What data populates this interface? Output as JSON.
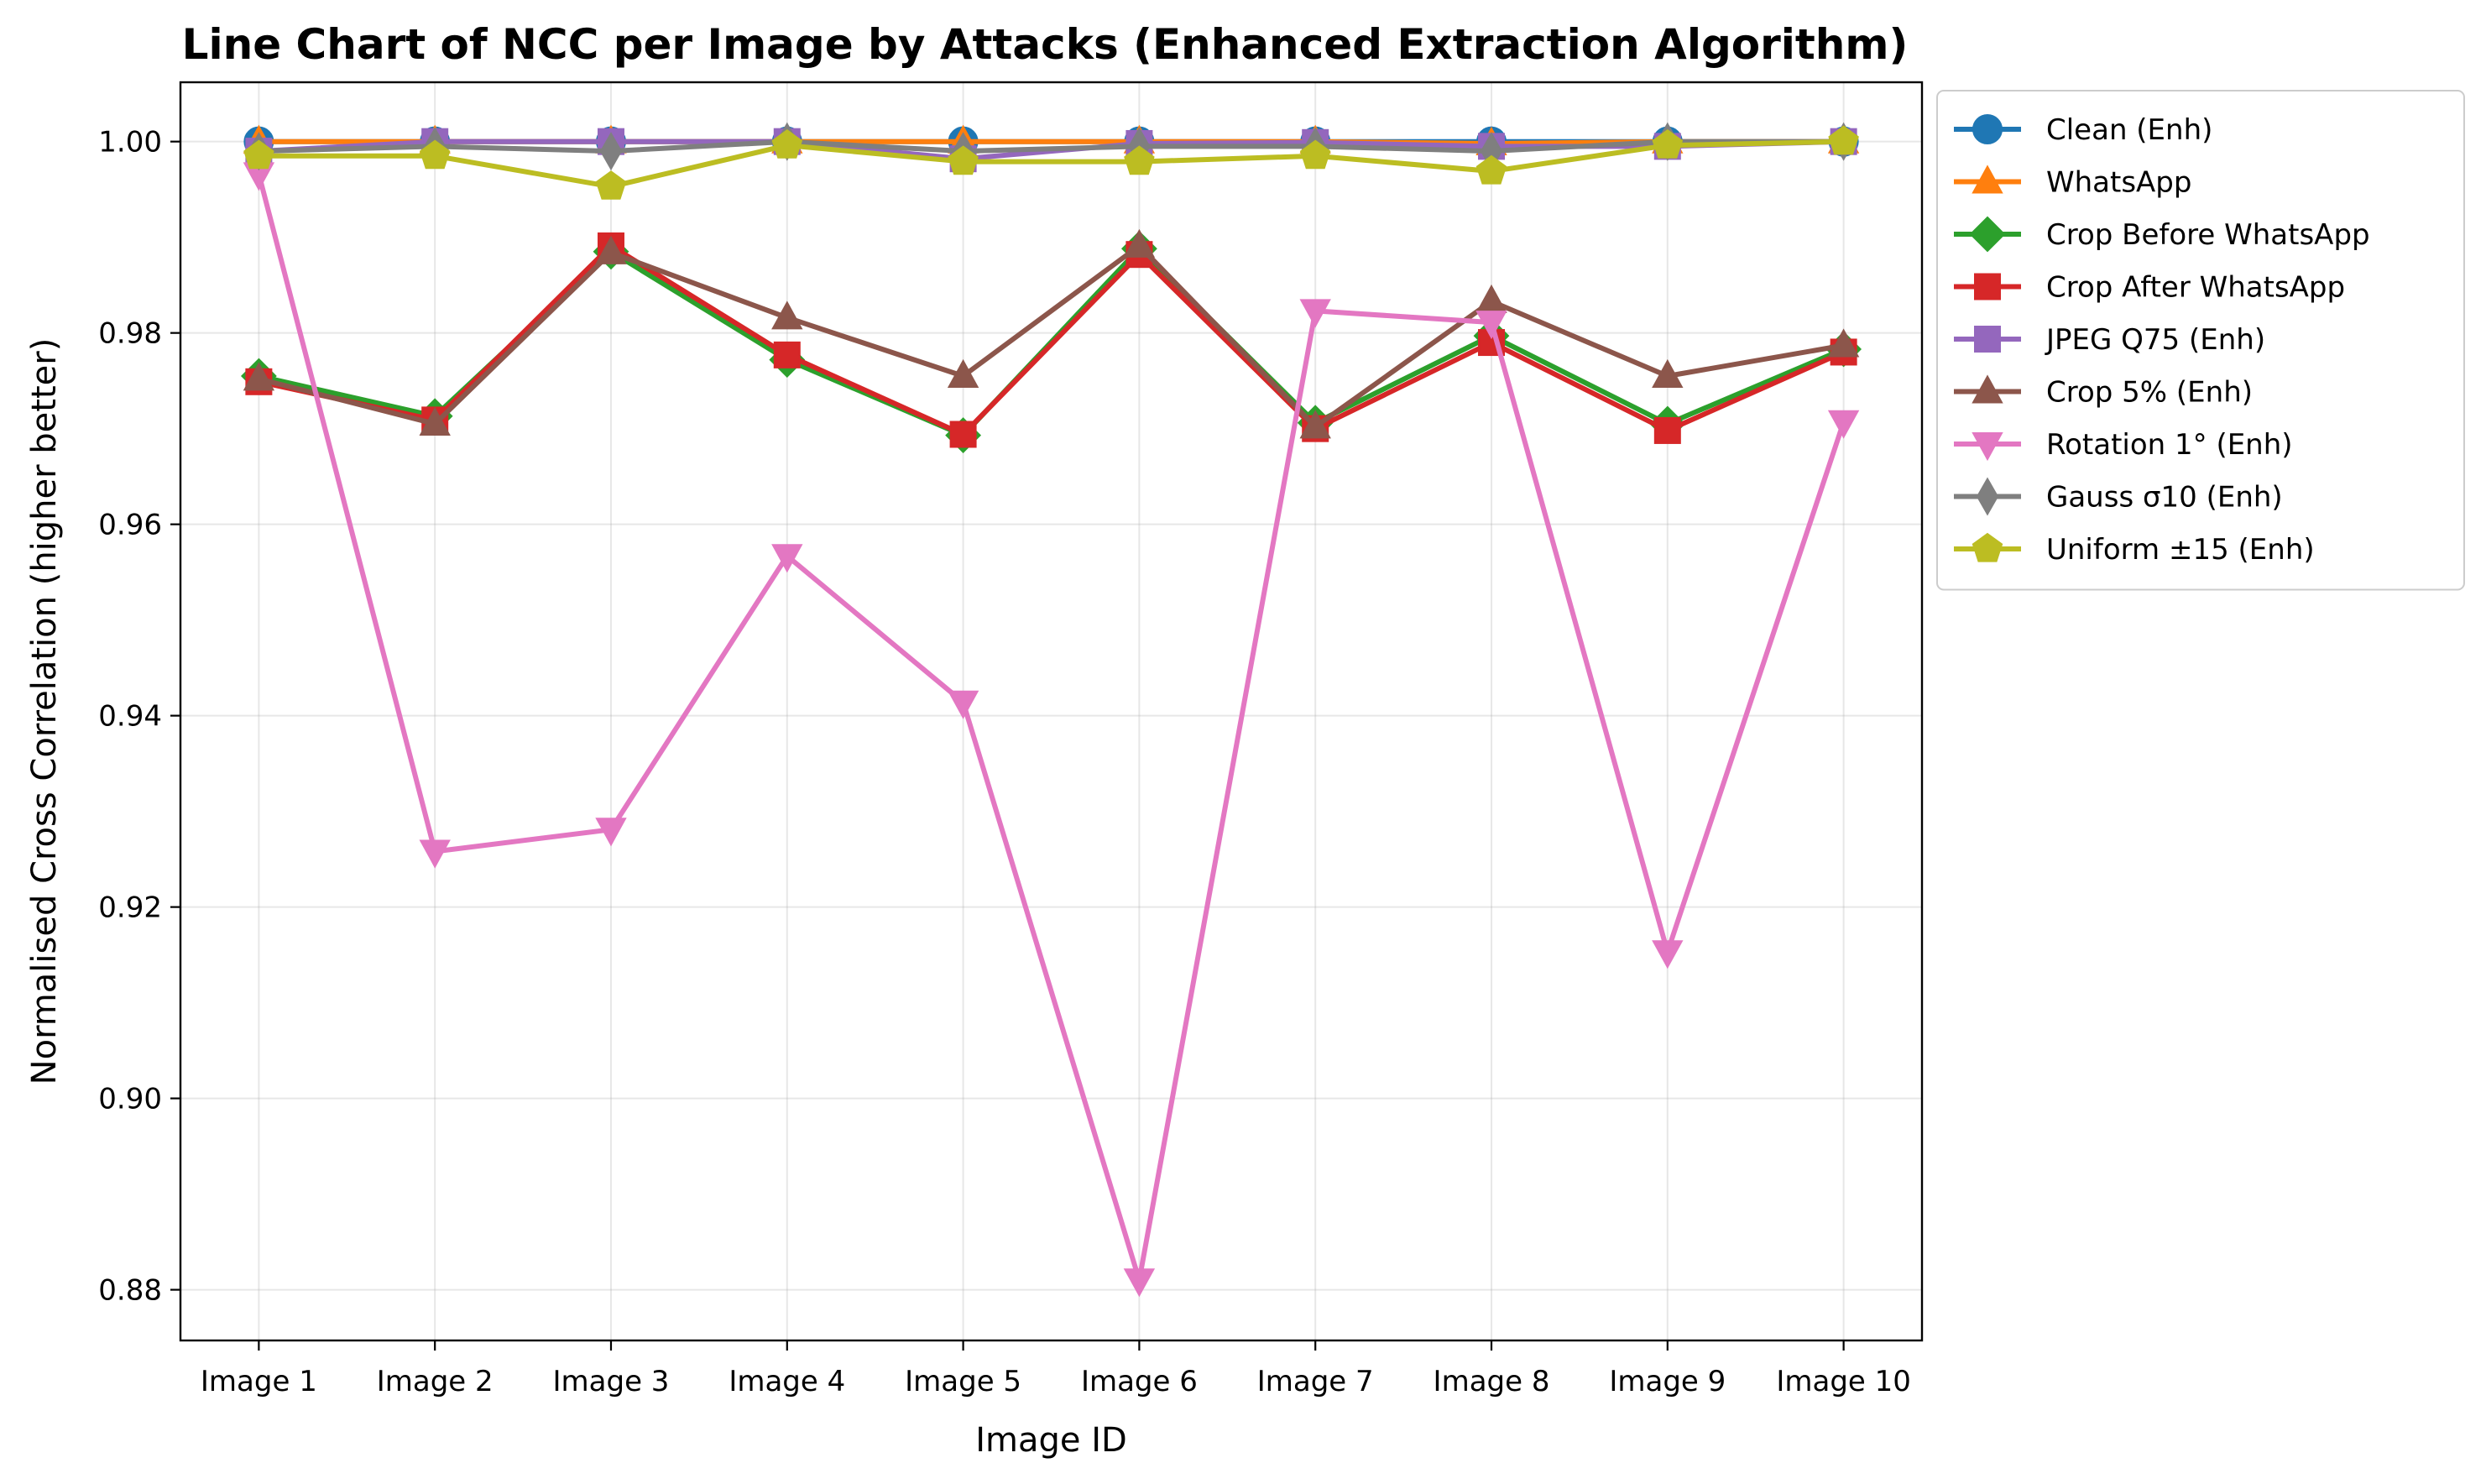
{
  "chart_data": {
    "type": "line",
    "title": "Line Chart of NCC per Image by Attacks (Enhanced Extraction Algorithm)",
    "xlabel": "Image ID",
    "ylabel": "Normalised Cross Correlation (higher better)",
    "categories": [
      "Image 1",
      "Image 2",
      "Image 3",
      "Image 4",
      "Image 5",
      "Image 6",
      "Image 7",
      "Image 8",
      "Image 9",
      "Image 10"
    ],
    "ylim": [
      0.8747,
      1.0062
    ],
    "yticks": [
      0.88,
      0.9,
      0.92,
      0.94,
      0.96,
      0.98,
      1.0
    ],
    "ytick_labels": [
      "0.88",
      "0.90",
      "0.92",
      "0.94",
      "0.96",
      "0.98",
      "1.00"
    ],
    "grid": true,
    "legend_position": "outside-right-top",
    "series": [
      {
        "name": "Clean (Enh)",
        "color": "#1f77b4",
        "marker": "circle",
        "values": [
          1.0,
          1.0,
          1.0,
          1.0,
          1.0,
          1.0,
          1.0,
          1.0,
          1.0,
          1.0
        ]
      },
      {
        "name": "WhatsApp",
        "color": "#ff7f0e",
        "marker": "triangle-up",
        "values": [
          1.0,
          1.0,
          1.0,
          1.0,
          1.0,
          1.0,
          1.0,
          0.9998,
          1.0,
          1.0
        ]
      },
      {
        "name": "Crop Before WhatsApp",
        "color": "#2ca02c",
        "marker": "diamond",
        "values": [
          0.9755,
          0.9713,
          0.9885,
          0.9772,
          0.9693,
          0.9888,
          0.9706,
          0.9797,
          0.9705,
          0.9783
        ]
      },
      {
        "name": "Crop After WhatsApp",
        "color": "#d62728",
        "marker": "square",
        "values": [
          0.9749,
          0.9709,
          0.9891,
          0.9777,
          0.9694,
          0.9882,
          0.97,
          0.979,
          0.9698,
          0.978
        ]
      },
      {
        "name": "JPEG Q75 (Enh)",
        "color": "#9467bd",
        "marker": "square",
        "values": [
          0.999,
          1.0,
          1.0,
          1.0,
          0.9982,
          0.9998,
          0.9999,
          0.9995,
          0.9995,
          1.0
        ]
      },
      {
        "name": "Crop 5% (Enh)",
        "color": "#8c564b",
        "marker": "triangle-up",
        "values": [
          0.9752,
          0.9705,
          0.9884,
          0.9816,
          0.9755,
          0.9891,
          0.9702,
          0.9833,
          0.9755,
          0.9787
        ]
      },
      {
        "name": "Rotation 1° (Enh)",
        "color": "#e377c2",
        "marker": "triangle-down",
        "values": [
          0.9966,
          0.9258,
          0.9281,
          0.9567,
          0.9414,
          0.881,
          0.9823,
          0.9811,
          0.9153,
          0.9707
        ]
      },
      {
        "name": "Gauss σ10 (Enh)",
        "color": "#7f7f7f",
        "marker": "thin-diamond",
        "values": [
          0.999,
          0.9995,
          0.999,
          1.0,
          0.999,
          0.9995,
          0.9995,
          0.999,
          1.0,
          1.0
        ]
      },
      {
        "name": "Uniform ±15 (Enh)",
        "color": "#bcbd22",
        "marker": "pentagon",
        "values": [
          0.9985,
          0.9985,
          0.9953,
          0.9996,
          0.9979,
          0.9979,
          0.9985,
          0.9969,
          0.9996,
          1.0
        ]
      }
    ]
  }
}
